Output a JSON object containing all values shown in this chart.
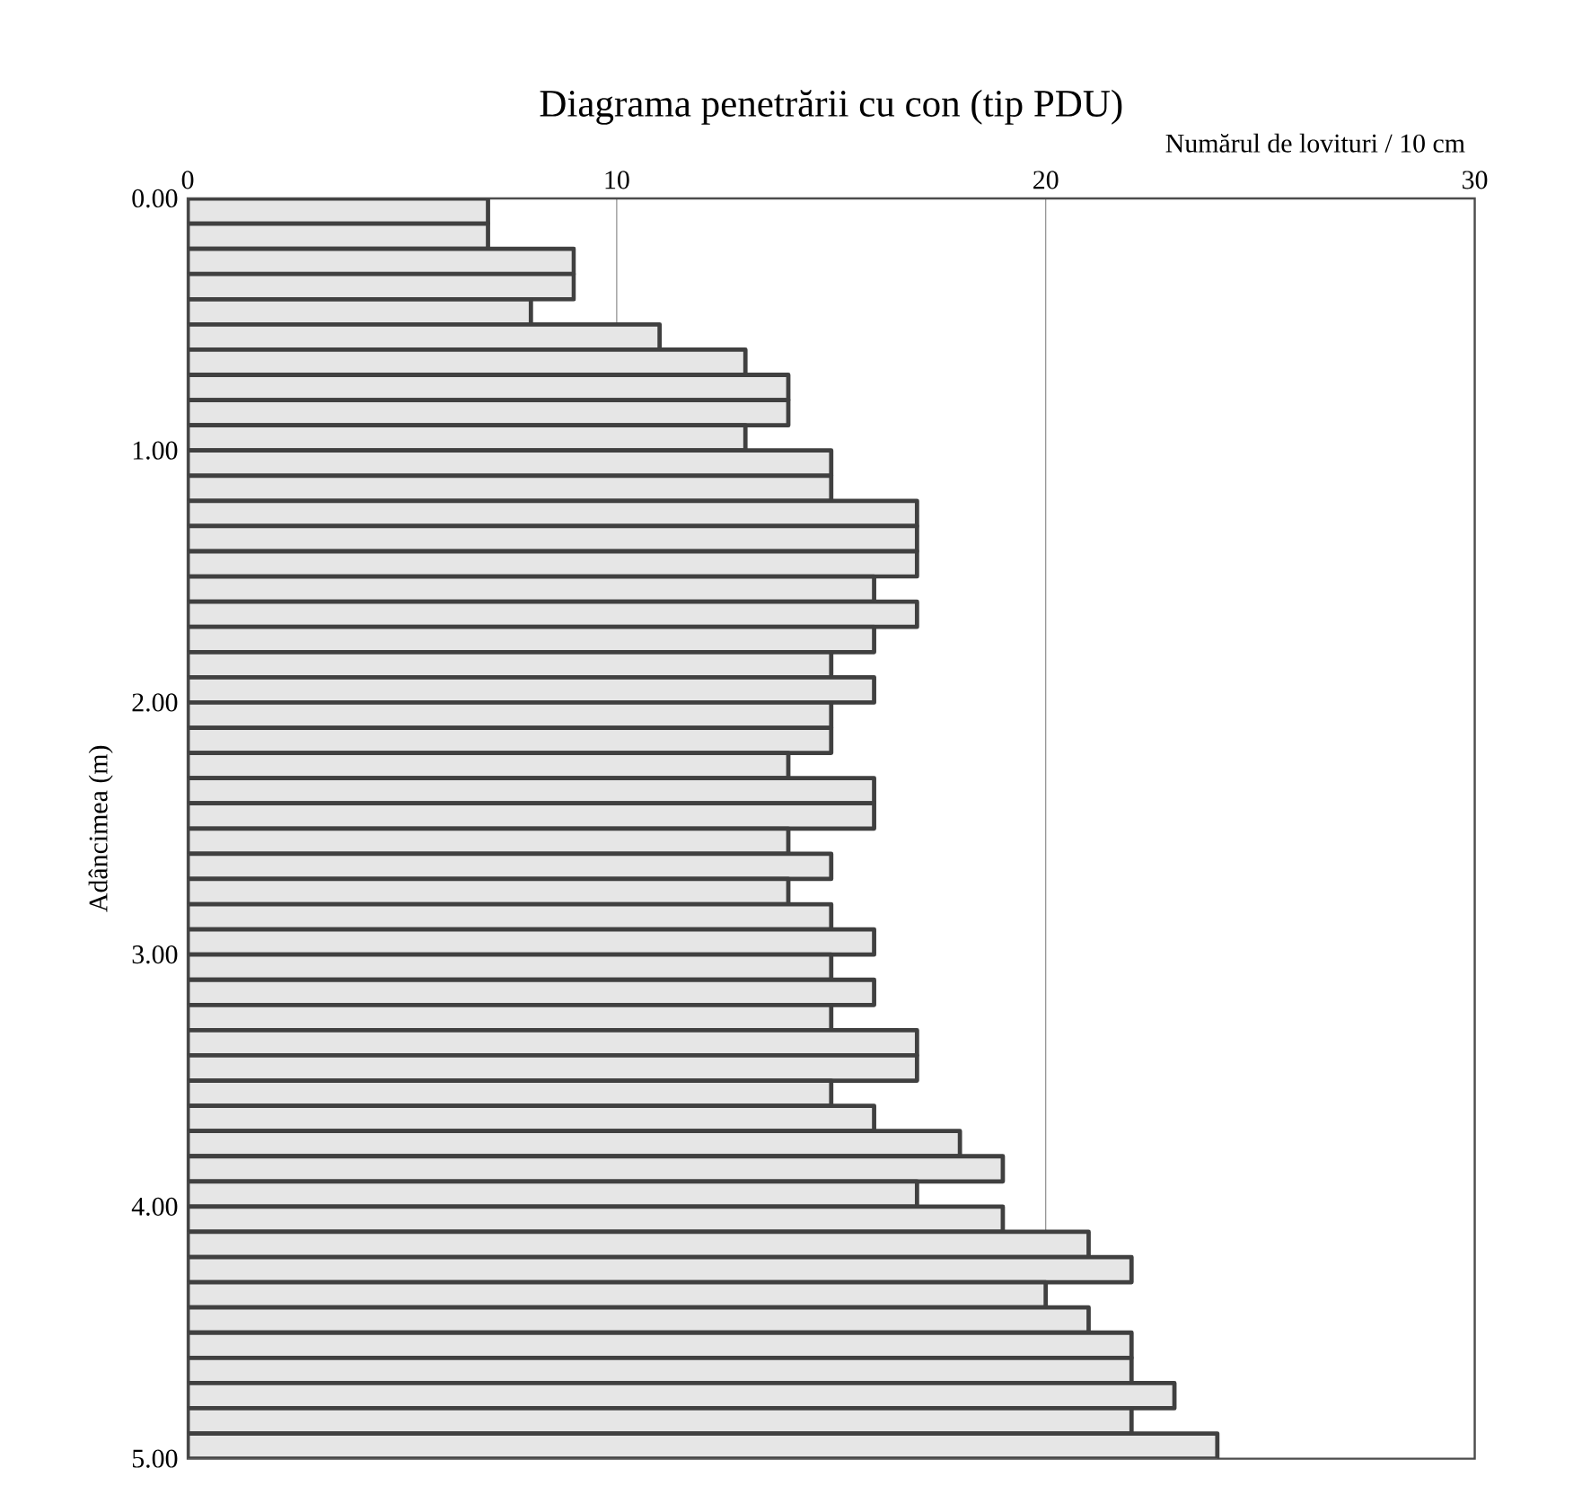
{
  "chart_data": {
    "type": "histogram",
    "orientation": "horizontal",
    "title": "Diagrama penetrării cu con (tip PDU)",
    "xlabel": "Numărul de lovituri / 10 cm",
    "ylabel": "Adâncimea (m)",
    "bins": [
      0,
      0.1,
      0.2,
      0.3,
      0.4,
      0.5,
      0.6,
      0.7,
      0.8,
      0.9,
      1.0,
      1.1,
      1.2,
      1.3,
      1.4,
      1.5,
      1.6,
      1.7,
      1.8,
      1.9,
      2.0,
      2.1,
      2.2,
      2.3,
      2.4,
      2.5,
      2.6,
      2.7,
      2.8,
      2.9,
      3.0,
      3.1,
      3.2,
      3.3,
      3.4,
      3.5,
      3.6,
      3.7,
      3.8,
      3.9,
      4.0,
      4.1,
      4.2,
      4.3,
      4.4,
      4.5,
      4.6,
      4.7,
      4.8,
      4.9,
      5.0
    ],
    "values": [
      7,
      7,
      9,
      9,
      8,
      11,
      13,
      14,
      14,
      13,
      15,
      15,
      17,
      17,
      17,
      16,
      17,
      16,
      15,
      16,
      15,
      15,
      14,
      16,
      16,
      14,
      15,
      14,
      15,
      16,
      15,
      16,
      15,
      17,
      17,
      15,
      16,
      18,
      19,
      17,
      19,
      21,
      22,
      20,
      21,
      22,
      22,
      23,
      22,
      24
    ],
    "color": "#e6e6e6",
    "xlim": [
      0,
      30
    ],
    "xticks": [
      0,
      10,
      20,
      30
    ],
    "ylim": [
      5,
      0
    ],
    "yticks": [
      {
        "value": 0,
        "label": "0.00"
      },
      {
        "value": 1,
        "label": "1.00"
      },
      {
        "value": 2,
        "label": "2.00"
      },
      {
        "value": 3,
        "label": "3.00"
      },
      {
        "value": 4,
        "label": "4.00"
      },
      {
        "value": 5,
        "label": "5.00"
      }
    ],
    "grid": "x"
  }
}
